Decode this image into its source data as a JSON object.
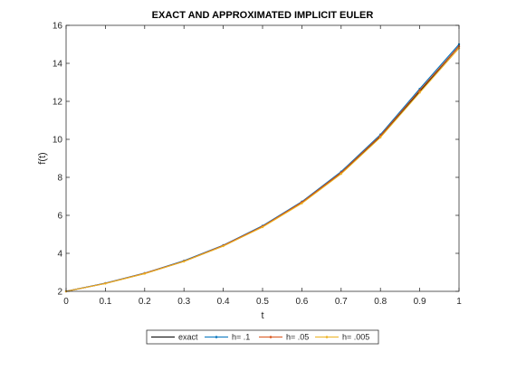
{
  "chart_data": {
    "type": "line",
    "title": "EXACT AND APPROXIMATED IMPLICIT EULER",
    "xlabel": "t",
    "ylabel": "f(t)",
    "xlim": [
      0,
      1
    ],
    "ylim": [
      2,
      16
    ],
    "xticks": [
      0,
      0.1,
      0.2,
      0.3,
      0.4,
      0.5,
      0.6,
      0.7,
      0.8,
      0.9,
      1
    ],
    "xtick_labels": [
      "0",
      "0.1",
      "0.2",
      "0.3",
      "0.4",
      "0.5",
      "0.6",
      "0.7",
      "0.8",
      "0.9",
      "1"
    ],
    "yticks": [
      2,
      4,
      6,
      8,
      10,
      12,
      14,
      16
    ],
    "ytick_labels": [
      "2",
      "4",
      "6",
      "8",
      "10",
      "12",
      "14",
      "16"
    ],
    "grid": false,
    "legend_position": "bottom-center-outside",
    "series": [
      {
        "name": "exact",
        "color": "#000000",
        "marker": "none",
        "x": [
          0,
          0.1,
          0.2,
          0.3,
          0.4,
          0.5,
          0.6,
          0.7,
          0.8,
          0.9,
          1.0
        ],
        "y": [
          2.0,
          2.42,
          2.94,
          3.58,
          4.39,
          5.4,
          6.66,
          8.22,
          10.15,
          12.52,
          14.9
        ]
      },
      {
        "name": "h= .1",
        "color": "#0072BD",
        "marker": "dot",
        "x": [
          0,
          0.1,
          0.2,
          0.3,
          0.4,
          0.5,
          0.6,
          0.7,
          0.8,
          0.9,
          1.0
        ],
        "y": [
          2.0,
          2.43,
          2.96,
          3.61,
          4.43,
          5.45,
          6.72,
          8.3,
          10.25,
          12.66,
          15.0
        ]
      },
      {
        "name": "h= .05",
        "color": "#D95319",
        "marker": "dot",
        "x": [
          0,
          0.1,
          0.2,
          0.3,
          0.4,
          0.5,
          0.6,
          0.7,
          0.8,
          0.9,
          1.0
        ],
        "y": [
          2.0,
          2.42,
          2.95,
          3.59,
          4.41,
          5.42,
          6.69,
          8.25,
          10.19,
          12.58,
          14.9
        ]
      },
      {
        "name": "h= .005",
        "color": "#EDB120",
        "marker": "dot",
        "x": [
          0,
          0.1,
          0.2,
          0.3,
          0.4,
          0.5,
          0.6,
          0.7,
          0.8,
          0.9,
          1.0
        ],
        "y": [
          2.0,
          2.41,
          2.93,
          3.57,
          4.38,
          5.38,
          6.63,
          8.18,
          10.1,
          12.46,
          14.8
        ]
      }
    ]
  }
}
